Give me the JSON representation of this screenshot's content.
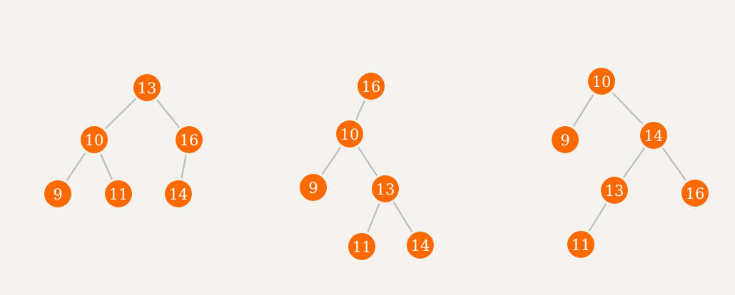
{
  "colors": {
    "background": "#f5f3ef",
    "node": "#ff6a00",
    "edge": "#bdbdbd",
    "label": "#ffffff"
  },
  "trees": [
    {
      "nodes": [
        {
          "id": "t1-n13",
          "label": "13"
        },
        {
          "id": "t1-n10",
          "label": "10"
        },
        {
          "id": "t1-n16",
          "label": "16"
        },
        {
          "id": "t1-n9",
          "label": "9"
        },
        {
          "id": "t1-n11",
          "label": "11"
        },
        {
          "id": "t1-n14",
          "label": "14"
        }
      ],
      "edges": [
        [
          "t1-n13",
          "t1-n10"
        ],
        [
          "t1-n13",
          "t1-n16"
        ],
        [
          "t1-n10",
          "t1-n9"
        ],
        [
          "t1-n10",
          "t1-n11"
        ],
        [
          "t1-n16",
          "t1-n14"
        ]
      ]
    },
    {
      "nodes": [
        {
          "id": "t2-n16",
          "label": "16"
        },
        {
          "id": "t2-n10",
          "label": "10"
        },
        {
          "id": "t2-n9",
          "label": "9"
        },
        {
          "id": "t2-n13",
          "label": "13"
        },
        {
          "id": "t2-n11",
          "label": "11"
        },
        {
          "id": "t2-n14",
          "label": "14"
        }
      ],
      "edges": [
        [
          "t2-n16",
          "t2-n10"
        ],
        [
          "t2-n10",
          "t2-n9"
        ],
        [
          "t2-n10",
          "t2-n13"
        ],
        [
          "t2-n13",
          "t2-n11"
        ],
        [
          "t2-n13",
          "t2-n14"
        ]
      ]
    },
    {
      "nodes": [
        {
          "id": "t3-n10",
          "label": "10"
        },
        {
          "id": "t3-n9",
          "label": "9"
        },
        {
          "id": "t3-n14",
          "label": "14"
        },
        {
          "id": "t3-n13",
          "label": "13"
        },
        {
          "id": "t3-n16",
          "label": "16"
        },
        {
          "id": "t3-n11",
          "label": "11"
        }
      ],
      "edges": [
        [
          "t3-n10",
          "t3-n9"
        ],
        [
          "t3-n10",
          "t3-n14"
        ],
        [
          "t3-n14",
          "t3-n13"
        ],
        [
          "t3-n14",
          "t3-n16"
        ],
        [
          "t3-n13",
          "t3-n11"
        ]
      ]
    }
  ]
}
